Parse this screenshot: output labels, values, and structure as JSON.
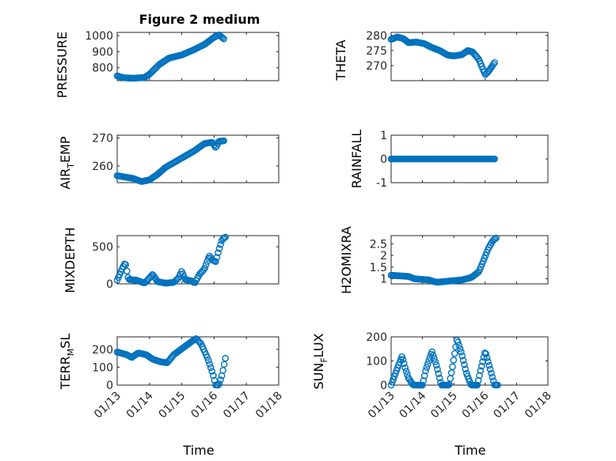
{
  "figure": {
    "title": "Figure 2 medium"
  },
  "colors": {
    "series": "#0072BD",
    "axis": "#262626",
    "grid": "#d9d9d9"
  },
  "chart_data": [
    {
      "id": "pressure",
      "type": "scatter",
      "ylabel": "PRESSURE",
      "title": "Figure 2 medium",
      "xlim": [
        0,
        5
      ],
      "ylim": [
        720,
        1020
      ],
      "yticks": [
        800,
        900,
        1000
      ],
      "yticklabels": [
        "800",
        "900",
        "1000"
      ],
      "xticks": [
        0,
        1,
        2,
        3,
        4,
        5
      ],
      "xticklabels": [],
      "anchors": [
        [
          0,
          750
        ],
        [
          0.2,
          738
        ],
        [
          0.5,
          735
        ],
        [
          0.85,
          740
        ],
        [
          1.0,
          760
        ],
        [
          1.3,
          820
        ],
        [
          1.6,
          860
        ],
        [
          2.0,
          880
        ],
        [
          2.4,
          915
        ],
        [
          2.7,
          945
        ],
        [
          3.0,
          990
        ],
        [
          3.15,
          1005
        ],
        [
          3.3,
          980
        ]
      ],
      "n": 90
    },
    {
      "id": "theta",
      "type": "scatter",
      "ylabel": "THETA",
      "xlim": [
        0,
        5
      ],
      "ylim": [
        265,
        281
      ],
      "yticks": [
        270,
        275,
        280
      ],
      "yticklabels": [
        "270",
        "275",
        "280"
      ],
      "xticks": [
        0,
        1,
        2,
        3,
        4,
        5
      ],
      "xticklabels": [],
      "anchors": [
        [
          0,
          278.7
        ],
        [
          0.2,
          279.5
        ],
        [
          0.4,
          278.9
        ],
        [
          0.55,
          277.6
        ],
        [
          0.8,
          277.8
        ],
        [
          1.05,
          277.3
        ],
        [
          1.3,
          276.0
        ],
        [
          1.55,
          275.0
        ],
        [
          1.8,
          273.5
        ],
        [
          2.0,
          273.2
        ],
        [
          2.25,
          273.6
        ],
        [
          2.45,
          275.0
        ],
        [
          2.6,
          274.5
        ],
        [
          2.8,
          272.0
        ],
        [
          2.9,
          269.5
        ],
        [
          3.0,
          267.0
        ],
        [
          3.1,
          268.0
        ],
        [
          3.3,
          271.0
        ]
      ],
      "n": 90
    },
    {
      "id": "air_temp",
      "type": "scatter",
      "ylabel": "AIR",
      "xlim": [
        0,
        5
      ],
      "ylim": [
        254,
        271
      ],
      "yticks": [
        260,
        270
      ],
      "yticklabels": [
        "260",
        "270"
      ],
      "xticks": [
        0,
        1,
        2,
        3,
        4,
        5
      ],
      "xticklabels": [],
      "anchors": [
        [
          0,
          256.5
        ],
        [
          0.25,
          256.0
        ],
        [
          0.5,
          255.5
        ],
        [
          0.75,
          254.4
        ],
        [
          1.0,
          255.0
        ],
        [
          1.25,
          257.0
        ],
        [
          1.5,
          259.5
        ],
        [
          1.8,
          261.5
        ],
        [
          2.1,
          263.5
        ],
        [
          2.4,
          265.5
        ],
        [
          2.7,
          268.0
        ],
        [
          2.95,
          268.5
        ],
        [
          3.05,
          266.5
        ],
        [
          3.15,
          268.8
        ],
        [
          3.3,
          269.0
        ]
      ],
      "n": 90
    },
    {
      "id": "rainfall",
      "type": "scatter",
      "ylabel": "RAINFALL",
      "xlim": [
        0,
        5
      ],
      "ylim": [
        -1,
        1
      ],
      "yticks": [
        -1,
        0,
        1
      ],
      "yticklabels": [
        "-1",
        "0",
        "1"
      ],
      "xticks": [
        0,
        1,
        2,
        3,
        4,
        5
      ],
      "xticklabels": [],
      "anchors": [
        [
          0,
          0
        ],
        [
          3.3,
          0
        ]
      ],
      "n": 90
    },
    {
      "id": "mixdepth",
      "type": "scatter",
      "ylabel": "MIXDEPTH",
      "xlim": [
        0,
        5
      ],
      "ylim": [
        0,
        650
      ],
      "yticks": [
        0,
        500
      ],
      "yticklabels": [
        "0",
        "500"
      ],
      "xticks": [
        0,
        1,
        2,
        3,
        4,
        5
      ],
      "xticklabels": [],
      "anchors": [
        [
          0,
          50
        ],
        [
          0.15,
          200
        ],
        [
          0.25,
          290
        ],
        [
          0.35,
          60
        ],
        [
          0.6,
          50
        ],
        [
          0.85,
          10
        ],
        [
          1.0,
          80
        ],
        [
          1.1,
          130
        ],
        [
          1.25,
          30
        ],
        [
          1.5,
          10
        ],
        [
          1.75,
          20
        ],
        [
          1.9,
          80
        ],
        [
          2.0,
          170
        ],
        [
          2.1,
          60
        ],
        [
          2.3,
          40
        ],
        [
          2.4,
          10
        ],
        [
          2.55,
          130
        ],
        [
          2.7,
          200
        ],
        [
          2.85,
          380
        ],
        [
          2.95,
          320
        ],
        [
          3.05,
          300
        ],
        [
          3.15,
          460
        ],
        [
          3.25,
          600
        ],
        [
          3.35,
          630
        ]
      ],
      "n": 90
    },
    {
      "id": "h2omixra",
      "type": "scatter",
      "ylabel": "H2OMIXRA",
      "xlim": [
        0,
        5
      ],
      "ylim": [
        0.78,
        2.85
      ],
      "yticks": [
        1,
        1.5,
        2,
        2.5
      ],
      "yticklabels": [
        "1",
        "1.5",
        "2",
        "2.5"
      ],
      "xticks": [
        0,
        1,
        2,
        3,
        4,
        5
      ],
      "xticklabels": [],
      "anchors": [
        [
          0,
          1.15
        ],
        [
          0.55,
          1.1
        ],
        [
          0.75,
          1.0
        ],
        [
          1.2,
          0.95
        ],
        [
          1.45,
          0.85
        ],
        [
          1.85,
          0.9
        ],
        [
          2.25,
          0.95
        ],
        [
          2.55,
          1.05
        ],
        [
          2.8,
          1.3
        ],
        [
          2.95,
          1.8
        ],
        [
          3.1,
          2.3
        ],
        [
          3.25,
          2.65
        ],
        [
          3.35,
          2.75
        ]
      ],
      "n": 90
    },
    {
      "id": "terr_msl",
      "type": "scatter",
      "ylabel": "TERR",
      "xlim": [
        0,
        5
      ],
      "ylim": [
        0,
        270
      ],
      "yticks": [
        0,
        100,
        200
      ],
      "yticklabels": [
        "0",
        "100",
        "200"
      ],
      "xticks": [
        0,
        1,
        2,
        3,
        4,
        5
      ],
      "xticklabels": [
        "01/13",
        "01/14",
        "01/15",
        "01/16",
        "01/17",
        "01/18"
      ],
      "anchors": [
        [
          0,
          185
        ],
        [
          0.3,
          170
        ],
        [
          0.45,
          155
        ],
        [
          0.65,
          180
        ],
        [
          0.9,
          170
        ],
        [
          1.1,
          145
        ],
        [
          1.35,
          130
        ],
        [
          1.55,
          125
        ],
        [
          1.75,
          170
        ],
        [
          2.05,
          210
        ],
        [
          2.35,
          250
        ],
        [
          2.45,
          260
        ],
        [
          2.6,
          230
        ],
        [
          2.8,
          150
        ],
        [
          2.95,
          70
        ],
        [
          3.05,
          0
        ],
        [
          3.15,
          0
        ],
        [
          3.25,
          60
        ],
        [
          3.35,
          150
        ]
      ],
      "n": 90
    },
    {
      "id": "sun_flux",
      "type": "scatter",
      "ylabel": "SUN",
      "xlim": [
        0,
        5
      ],
      "ylim": [
        0,
        200
      ],
      "yticks": [
        0,
        100,
        200
      ],
      "yticklabels": [
        "0",
        "100",
        "200"
      ],
      "xticks": [
        0,
        1,
        2,
        3,
        4,
        5
      ],
      "xticklabels": [
        "01/13",
        "01/14",
        "01/15",
        "01/16",
        "01/17",
        "01/18"
      ],
      "anchors": [
        [
          0,
          0
        ],
        [
          0.2,
          70
        ],
        [
          0.35,
          120
        ],
        [
          0.45,
          70
        ],
        [
          0.55,
          30
        ],
        [
          0.7,
          0
        ],
        [
          1.0,
          0
        ],
        [
          1.1,
          60
        ],
        [
          1.3,
          140
        ],
        [
          1.45,
          80
        ],
        [
          1.6,
          0
        ],
        [
          1.85,
          0
        ],
        [
          1.95,
          70
        ],
        [
          2.1,
          190
        ],
        [
          2.25,
          130
        ],
        [
          2.4,
          50
        ],
        [
          2.55,
          0
        ],
        [
          2.75,
          0
        ],
        [
          2.85,
          60
        ],
        [
          3.0,
          140
        ],
        [
          3.15,
          70
        ],
        [
          3.3,
          0
        ],
        [
          3.4,
          0
        ]
      ],
      "n": 100
    }
  ],
  "labels": {
    "xlabel_left": "Time",
    "xlabel_right": "Time",
    "air_main": "AIR",
    "air_sub": "T",
    "air_rest": "EMP",
    "terr_main": "TERR",
    "terr_sub": "M",
    "terr_rest": "SL",
    "sun_main": "SUN",
    "sun_sub": "F",
    "sun_rest": "LUX"
  }
}
